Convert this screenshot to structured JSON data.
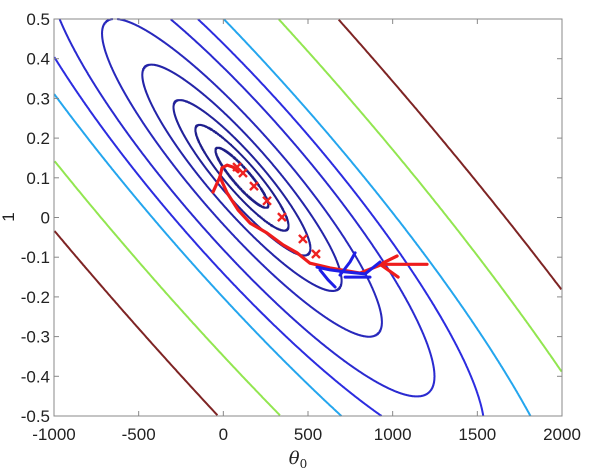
{
  "chart_data": {
    "type": "contour",
    "title": "",
    "xlabel": "θ",
    "xlabel_sub": "0",
    "ylabel": "1",
    "xlim": [
      -1000,
      2000
    ],
    "ylim": [
      -0.5,
      0.5
    ],
    "xticks": [
      -1000,
      -500,
      0,
      500,
      1000,
      1500,
      2000
    ],
    "xtick_labels": [
      "-1000",
      "-500",
      "0",
      "500",
      "1000",
      "1500",
      "2000"
    ],
    "yticks": [
      0.5,
      0.4,
      0.3,
      0.2,
      0.1,
      0,
      -0.1,
      -0.2,
      -0.3,
      -0.4,
      -0.5
    ],
    "ytick_labels": [
      "0.5",
      "0.4",
      "0.3",
      "0.2",
      "0.1",
      "0",
      "-0.1",
      "-0.2",
      "-0.3",
      "-0.4",
      "-0.5"
    ],
    "grid": false,
    "contour": {
      "minimum": [
        110,
        0.1
      ],
      "levels": [
        1,
        3.1,
        6.7,
        14.2,
        28,
        53,
        84,
        122,
        245,
        434
      ],
      "colors": [
        "#1e1e86",
        "#1e1e8c",
        "#22229a",
        "#2424a8",
        "#2828bc",
        "#2a2ad0",
        "#2c2ce0",
        "#24a6ee",
        "#92e650",
        "#7e2424"
      ]
    },
    "series": [
      {
        "name": "red-trajectory",
        "color": "#ee1c1c",
        "points": [
          [
            -61,
            0.064
          ],
          [
            -20,
            0.102
          ],
          [
            -8,
            0.125
          ],
          [
            22,
            0.132
          ],
          [
            57,
            0.127
          ],
          [
            87,
            0.115
          ]
        ]
      },
      {
        "name": "red-path",
        "color": "#ee1c1c",
        "points": [
          [
            -20,
            0.102
          ],
          [
            22,
            0.062
          ],
          [
            87,
            0.019
          ],
          [
            158,
            -0.014
          ],
          [
            258,
            -0.039
          ],
          [
            353,
            -0.069
          ],
          [
            435,
            -0.089
          ],
          [
            512,
            -0.115
          ],
          [
            630,
            -0.127
          ],
          [
            807,
            -0.14
          ],
          [
            926,
            -0.12
          ]
        ]
      },
      {
        "name": "red-arrow-shaft",
        "color": "#ee1c1c",
        "points": [
          [
            926,
            -0.118
          ],
          [
            1203,
            -0.118
          ]
        ]
      },
      {
        "name": "red-arrow-head",
        "color": "#ee1c1c",
        "points": [
          [
            1026,
            -0.097
          ],
          [
            926,
            -0.118
          ],
          [
            1032,
            -0.15
          ]
        ]
      },
      {
        "name": "blue-path-1",
        "color": "#1e1ee6",
        "points": [
          [
            553,
            -0.125
          ],
          [
            630,
            -0.132
          ],
          [
            719,
            -0.137
          ],
          [
            837,
            -0.142
          ],
          [
            925,
            -0.112
          ]
        ]
      },
      {
        "name": "blue-path-2",
        "color": "#1e1ee6",
        "points": [
          [
            571,
            -0.132
          ],
          [
            618,
            -0.157
          ],
          [
            660,
            -0.175
          ]
        ]
      },
      {
        "name": "blue-path-3",
        "color": "#1e1ee6",
        "points": [
          [
            689,
            -0.145
          ],
          [
            748,
            -0.112
          ],
          [
            778,
            -0.089
          ]
        ]
      },
      {
        "name": "blue-path-4",
        "color": "#1e1ee6",
        "points": [
          [
            719,
            -0.15
          ],
          [
            866,
            -0.15
          ]
        ]
      }
    ],
    "markers": {
      "name": "iterates",
      "symbol": "x",
      "color": "#ee2222",
      "points": [
        [
          81,
          0.127
        ],
        [
          116,
          0.112
        ],
        [
          181,
          0.079
        ],
        [
          258,
          0.042
        ],
        [
          346,
          0.001
        ],
        [
          470,
          -0.054
        ],
        [
          547,
          -0.092
        ]
      ]
    }
  }
}
